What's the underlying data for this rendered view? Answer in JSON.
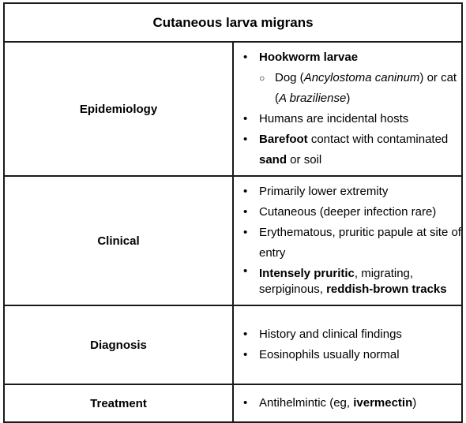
{
  "title": "Cutaneous larva migrans",
  "rows": [
    {
      "label": "Epidemiology",
      "items": [
        {
          "parts": [
            {
              "t": "Hookworm larvae",
              "b": true
            }
          ]
        },
        {
          "sub": true,
          "parts": [
            {
              "t": "Dog ("
            },
            {
              "t": "Ancylostoma caninum",
              "i": true
            },
            {
              "t": ") or cat ("
            },
            {
              "t": "A braziliense",
              "i": true
            },
            {
              "t": ")"
            }
          ]
        },
        {
          "parts": [
            {
              "t": "Humans are incidental hosts"
            }
          ]
        },
        {
          "parts": [
            {
              "t": "Barefoot",
              "b": true
            },
            {
              "t": " contact with contaminated "
            },
            {
              "t": "sand",
              "b": true
            },
            {
              "t": " or soil"
            }
          ]
        }
      ]
    },
    {
      "label": "Clinical",
      "items": [
        {
          "parts": [
            {
              "t": "Primarily lower extremity"
            }
          ]
        },
        {
          "parts": [
            {
              "t": "Cutaneous (deeper infection rare)"
            }
          ]
        },
        {
          "parts": [
            {
              "t": "Erythematous, pruritic papule at site of entry"
            }
          ]
        },
        {
          "wrap": true,
          "parts": [
            {
              "t": "Intensely pruritic",
              "b": true
            },
            {
              "t": ", migrating, serpiginous, "
            },
            {
              "t": "reddish-brown tracks",
              "b": true
            }
          ]
        }
      ]
    },
    {
      "label": "Diagnosis",
      "items": [
        {
          "parts": [
            {
              "t": "History and clinical findings"
            }
          ]
        },
        {
          "parts": [
            {
              "t": "Eosinophils usually normal"
            }
          ]
        }
      ]
    },
    {
      "label": "Treatment",
      "items": [
        {
          "parts": [
            {
              "t": "Antihelmintic (eg, "
            },
            {
              "t": "ivermectin",
              "b": true
            },
            {
              "t": ")"
            }
          ]
        }
      ]
    }
  ]
}
